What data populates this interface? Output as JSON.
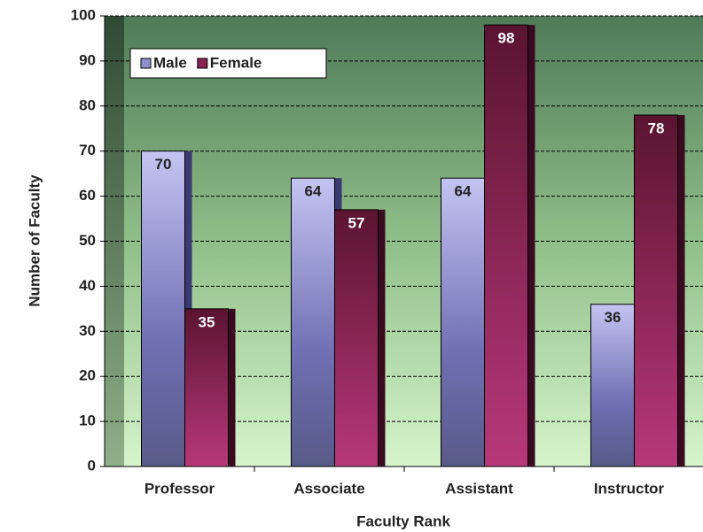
{
  "chart_data": {
    "type": "bar",
    "x_label": "Faculty Rank",
    "y_label": "Number of Faculty",
    "categories": [
      "Professor",
      "Associate",
      "Assistant",
      "Instructor"
    ],
    "series": [
      {
        "name": "Male",
        "color": "#8f8fd0",
        "values": [
          70,
          64,
          64,
          36
        ]
      },
      {
        "name": "Female",
        "color": "#8a2050",
        "values": [
          35,
          57,
          98,
          78
        ]
      }
    ],
    "ylim": [
      0,
      100
    ],
    "yticks": [
      0,
      10,
      20,
      30,
      40,
      50,
      60,
      70,
      80,
      90,
      100
    ],
    "grid": true,
    "legend": "top-left",
    "data_labels": true
  }
}
